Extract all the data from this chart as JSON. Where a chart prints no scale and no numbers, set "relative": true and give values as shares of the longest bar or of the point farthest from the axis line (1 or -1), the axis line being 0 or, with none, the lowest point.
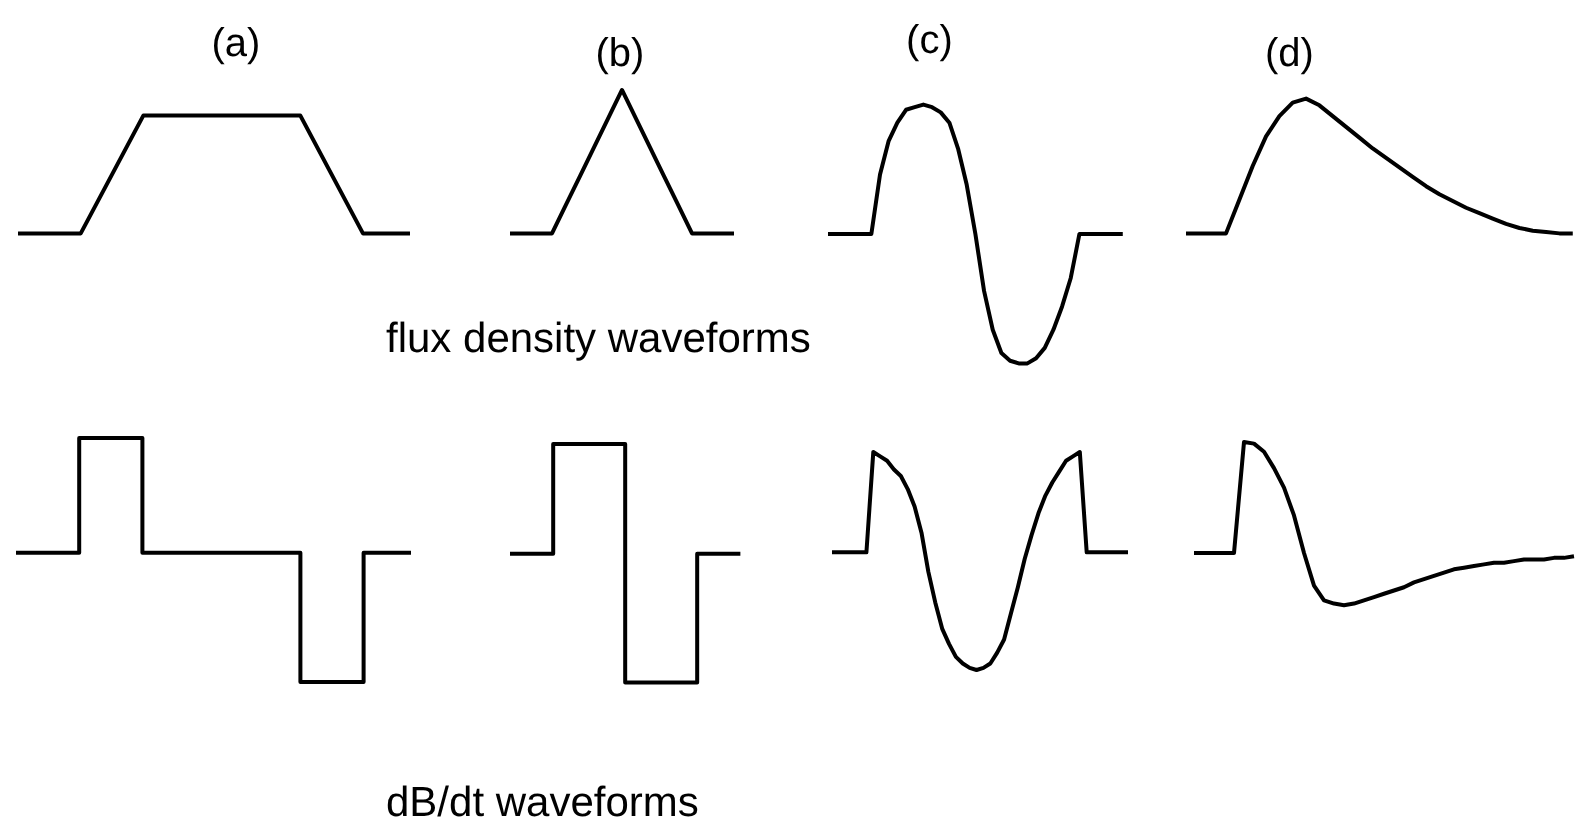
{
  "chart_data": [
    {
      "type": "line",
      "title": "(a)",
      "categories": [
        null,
        null,
        null,
        null,
        null,
        null,
        null,
        null,
        null,
        null,
        null,
        null,
        null,
        null,
        null,
        null,
        null,
        null,
        null,
        null,
        null,
        null,
        null,
        null,
        null,
        null
      ],
      "values": [
        0,
        0,
        0,
        0,
        0,
        0.25,
        0.5,
        0.75,
        1,
        1,
        1,
        1,
        1,
        1,
        1,
        1,
        1,
        1,
        1,
        0.75,
        0.5,
        0.25,
        0,
        0,
        0,
        0
      ],
      "color": "#000000",
      "relative": true
    },
    {
      "type": "line",
      "title": "(b)",
      "categories": [
        null,
        null,
        null,
        null,
        null,
        null,
        null,
        null,
        null,
        null,
        null,
        null,
        null,
        null,
        null,
        null,
        null
      ],
      "values": [
        0,
        0,
        0,
        0,
        0.2,
        0.4,
        0.6,
        0.8,
        1,
        0.8,
        0.6,
        0.4,
        0.2,
        0,
        0,
        0,
        0
      ],
      "color": "#000000",
      "relative": true,
      "annotations": [
        "flux density waveforms"
      ]
    },
    {
      "type": "line",
      "title": "(c)",
      "categories": [
        null,
        null,
        null,
        null,
        null,
        null,
        null,
        null,
        null,
        null,
        null,
        null,
        null,
        null,
        null,
        null,
        null,
        null,
        null,
        null,
        null,
        null,
        null,
        null,
        null,
        null,
        null,
        null,
        null,
        null,
        null,
        null,
        null,
        null,
        null
      ],
      "values": [
        0.5,
        0.5,
        0.5,
        0.5,
        0.5,
        0.5,
        0.73,
        0.86,
        0.93,
        0.98,
        0.99,
        1,
        0.99,
        0.97,
        0.93,
        0.83,
        0.69,
        0.5,
        0.28,
        0.13,
        0.04,
        0.01,
        0,
        0,
        0.02,
        0.06,
        0.13,
        0.22,
        0.33,
        0.5,
        0.5,
        0.5,
        0.5,
        0.5,
        0.5
      ],
      "color": "#000000",
      "relative": true
    },
    {
      "type": "line",
      "title": "(d)",
      "categories": [
        null,
        null,
        null,
        null,
        null,
        null,
        null,
        null,
        null,
        null,
        null,
        null,
        null,
        null,
        null,
        null,
        null,
        null,
        null,
        null,
        null,
        null,
        null,
        null,
        null,
        null,
        null,
        null,
        null,
        null
      ],
      "values": [
        0,
        0,
        0,
        0,
        0.25,
        0.5,
        0.72,
        0.87,
        0.97,
        1,
        0.95,
        0.87,
        0.79,
        0.71,
        0.63,
        0.56,
        0.49,
        0.42,
        0.35,
        0.29,
        0.24,
        0.19,
        0.15,
        0.11,
        0.07,
        0.04,
        0.02,
        0.01,
        0,
        0
      ],
      "color": "#000000",
      "relative": true
    },
    {
      "type": "step",
      "categories": [
        null,
        null,
        null,
        null,
        null,
        null,
        null,
        null,
        null,
        null,
        null,
        null,
        null,
        null,
        null,
        null,
        null,
        null,
        null,
        null,
        null,
        null,
        null,
        null,
        null,
        null
      ],
      "values": [
        0.53,
        0.53,
        0.53,
        0.53,
        1,
        1,
        1,
        1,
        0.53,
        0.53,
        0.53,
        0.53,
        0.53,
        0.53,
        0.53,
        0.53,
        0.53,
        0.53,
        0,
        0,
        0,
        0,
        0.53,
        0.53,
        0.53,
        0.53
      ],
      "color": "#000000",
      "relative": true
    },
    {
      "type": "step",
      "categories": [
        null,
        null,
        null,
        null,
        null,
        null,
        null,
        null,
        null,
        null,
        null,
        null,
        null,
        null,
        null,
        null,
        null
      ],
      "values": [
        0.54,
        0.54,
        0.54,
        1,
        1,
        1,
        1,
        1,
        0,
        0,
        0,
        0,
        0,
        0.54,
        0.54,
        0.54,
        0.54
      ],
      "color": "#000000",
      "relative": true,
      "annotations": [
        "dB/dt waveforms"
      ]
    },
    {
      "type": "line",
      "categories": [
        null,
        null,
        null,
        null,
        null,
        null,
        null,
        null,
        null,
        null,
        null,
        null,
        null,
        null,
        null,
        null,
        null,
        null,
        null,
        null,
        null,
        null,
        null,
        null,
        null,
        null,
        null,
        null,
        null,
        null,
        null,
        null,
        null,
        null,
        null,
        null,
        null,
        null,
        null,
        null,
        null,
        null,
        null,
        null
      ],
      "values": [
        0.54,
        0.54,
        0.54,
        0.54,
        0.54,
        0.54,
        1,
        0.98,
        0.96,
        0.92,
        0.89,
        0.83,
        0.75,
        0.63,
        0.45,
        0.31,
        0.19,
        0.12,
        0.06,
        0.03,
        0.01,
        0,
        0.01,
        0.03,
        0.08,
        0.14,
        0.26,
        0.38,
        0.51,
        0.62,
        0.72,
        0.8,
        0.86,
        0.91,
        0.96,
        0.98,
        1,
        0.54,
        0.54,
        0.54,
        0.54,
        0.54,
        0.54,
        0.54
      ],
      "color": "#000000",
      "relative": true
    },
    {
      "type": "line",
      "categories": [
        null,
        null,
        null,
        null,
        null,
        null,
        null,
        null,
        null,
        null,
        null,
        null,
        null,
        null,
        null,
        null,
        null,
        null,
        null,
        null,
        null,
        null,
        null,
        null,
        null,
        null,
        null,
        null,
        null,
        null,
        null,
        null,
        null,
        null,
        null,
        null,
        null,
        null,
        null
      ],
      "values": [
        0.32,
        0.32,
        0.32,
        0.32,
        0.32,
        1,
        0.99,
        0.94,
        0.84,
        0.72,
        0.55,
        0.32,
        0.12,
        0.03,
        0.01,
        0,
        0.01,
        0.03,
        0.05,
        0.07,
        0.09,
        0.11,
        0.14,
        0.16,
        0.18,
        0.2,
        0.22,
        0.23,
        0.24,
        0.25,
        0.26,
        0.26,
        0.27,
        0.28,
        0.28,
        0.28,
        0.29,
        0.29,
        0.3
      ],
      "color": "#000000",
      "relative": true
    }
  ]
}
